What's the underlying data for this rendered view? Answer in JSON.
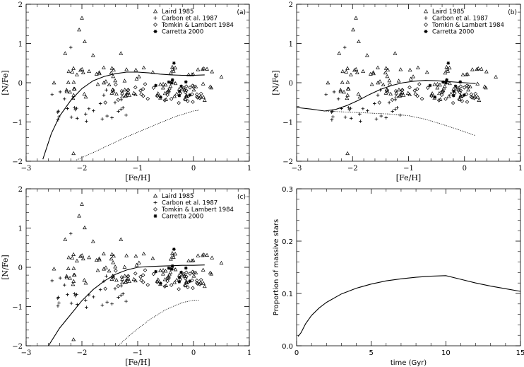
{
  "chart_data": [
    {
      "panel_label": "(a)",
      "type": "scatter",
      "xlabel": "[Fe/H]",
      "ylabel": "[N/Fe]",
      "xlim": [
        -3,
        1
      ],
      "ylim": [
        -2,
        2
      ],
      "xticks": [
        "-3",
        "-2",
        "-1",
        "0",
        "1"
      ],
      "yticks": [
        "-2",
        "-1",
        "0",
        "1",
        "2"
      ],
      "legend_position": "top-right",
      "legend": [
        {
          "label": "Laird 1985",
          "marker": "triangle"
        },
        {
          "label": "Carbon et al. 1987",
          "marker": "plus"
        },
        {
          "label": "Tomkin & Lambert 1984",
          "marker": "diamond"
        },
        {
          "label": "Carretta 2000",
          "marker": "asterisk"
        }
      ],
      "model_lines": [
        {
          "style": "solid",
          "x": [
            -2.7,
            -2.55,
            -2.4,
            -2.2,
            -2.0,
            -1.8,
            -1.6,
            -1.4,
            -1.2,
            -1.0,
            -0.8,
            -0.6,
            -0.4,
            -0.2,
            0.0,
            0.2
          ],
          "y": [
            -1.95,
            -1.3,
            -0.85,
            -0.45,
            -0.15,
            0.05,
            0.16,
            0.23,
            0.27,
            0.27,
            0.25,
            0.22,
            0.2,
            0.19,
            0.19,
            0.2
          ]
        },
        {
          "style": "dotted",
          "x": [
            -2.1,
            -1.8,
            -1.5,
            -1.2,
            -0.9,
            -0.6,
            -0.3,
            0.0,
            0.1
          ],
          "y": [
            -1.97,
            -1.78,
            -1.58,
            -1.38,
            -1.2,
            -1.02,
            -0.85,
            -0.72,
            -0.7
          ]
        }
      ]
    },
    {
      "panel_label": "(b)",
      "type": "scatter",
      "xlabel": "[Fe/H]",
      "ylabel": "[N/Fe]",
      "xlim": [
        -3,
        1
      ],
      "ylim": [
        -2,
        2
      ],
      "xticks": [
        "-3",
        "-2",
        "-1",
        "0",
        "1"
      ],
      "yticks": [
        "-2",
        "-1",
        "0",
        "1",
        "2"
      ],
      "legend_position": "top-right",
      "legend": [
        {
          "label": "Laird 1985",
          "marker": "triangle"
        },
        {
          "label": "Carbon et al. 1987",
          "marker": "plus"
        },
        {
          "label": "Tomkin & Lambert 1984",
          "marker": "diamond"
        },
        {
          "label": "Carretta 2000",
          "marker": "asterisk"
        }
      ],
      "model_lines": [
        {
          "style": "solid",
          "x": [
            -3.0,
            -2.75,
            -2.5,
            -2.3,
            -2.1,
            -1.9,
            -1.7,
            -1.5,
            -1.3,
            -1.1,
            -0.9,
            -0.7,
            -0.5,
            -0.3,
            0.0,
            0.2
          ],
          "y": [
            -0.63,
            -0.67,
            -0.72,
            -0.68,
            -0.58,
            -0.45,
            -0.3,
            -0.17,
            -0.07,
            0.0,
            0.04,
            0.06,
            0.05,
            0.03,
            0.0,
            -0.02
          ]
        },
        {
          "style": "dotted",
          "x": [
            -2.5,
            -2.2,
            -1.9,
            -1.6,
            -1.3,
            -1.0,
            -0.7,
            -0.4,
            -0.1,
            0.2
          ],
          "y": [
            -0.72,
            -0.74,
            -0.76,
            -0.78,
            -0.8,
            -0.84,
            -0.93,
            -1.06,
            -1.2,
            -1.35
          ]
        }
      ]
    },
    {
      "panel_label": "(c)",
      "type": "scatter",
      "xlabel": "[Fe/H]",
      "ylabel": "[N/Fe]",
      "xlim": [
        -3,
        1
      ],
      "ylim": [
        -2,
        2
      ],
      "xticks": [
        "-3",
        "-2",
        "-1",
        "0",
        "1"
      ],
      "yticks": [
        "-2",
        "-1",
        "0",
        "1",
        "2"
      ],
      "legend_position": "top-right",
      "legend": [
        {
          "label": "Laird 1985",
          "marker": "triangle"
        },
        {
          "label": "Carbon et al. 1987",
          "marker": "plus"
        },
        {
          "label": "Tomkin & Lambert 1984",
          "marker": "diamond"
        },
        {
          "label": "Carretta 2000",
          "marker": "asterisk"
        }
      ],
      "model_lines": [
        {
          "style": "solid",
          "x": [
            -2.6,
            -2.4,
            -2.2,
            -2.0,
            -1.8,
            -1.6,
            -1.4,
            -1.2,
            -1.0,
            -0.8,
            -0.6,
            -0.4,
            -0.2,
            0.0,
            0.2
          ],
          "y": [
            -2.0,
            -1.55,
            -1.2,
            -0.85,
            -0.57,
            -0.35,
            -0.18,
            -0.07,
            0.0,
            0.02,
            0.03,
            0.04,
            0.05,
            0.05,
            0.06
          ]
        },
        {
          "style": "dotted",
          "x": [
            -1.35,
            -1.1,
            -0.8,
            -0.5,
            -0.2,
            0.0,
            0.1
          ],
          "y": [
            -2.0,
            -1.68,
            -1.35,
            -1.08,
            -0.9,
            -0.84,
            -0.84
          ]
        }
      ]
    },
    {
      "type": "line",
      "xlabel": "time (Gyr)",
      "ylabel": "Proportion of massive stars",
      "xlim": [
        0,
        15
      ],
      "ylim": [
        0,
        0.3
      ],
      "xticks": [
        "0",
        "5",
        "10",
        "15"
      ],
      "yticks": [
        "0.0",
        "0.1",
        "0.2",
        "0.3"
      ],
      "series": [
        {
          "x": [
            0.1,
            0.3,
            0.6,
            1,
            1.5,
            2,
            3,
            4,
            5,
            6,
            7,
            8,
            9,
            10,
            11,
            12,
            13,
            14,
            15
          ],
          "y": [
            0.018,
            0.025,
            0.042,
            0.058,
            0.072,
            0.083,
            0.099,
            0.11,
            0.118,
            0.124,
            0.128,
            0.131,
            0.133,
            0.134,
            0.127,
            0.12,
            0.114,
            0.109,
            0.104
          ]
        }
      ]
    }
  ]
}
